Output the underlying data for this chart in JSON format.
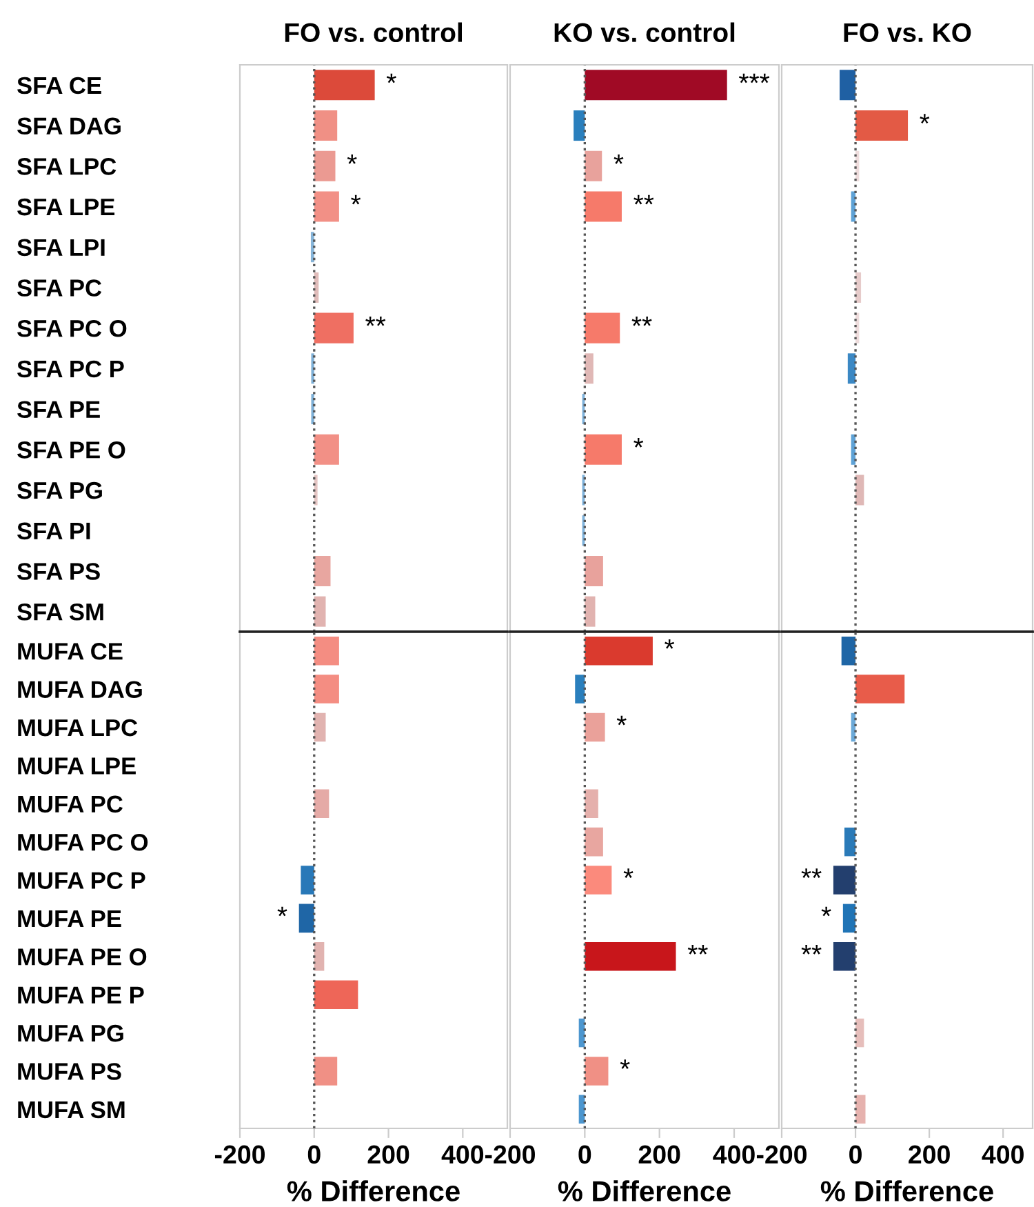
{
  "chart_data": [
    {
      "type": "bar",
      "orientation": "horizontal",
      "title": "FO vs. control",
      "tick_labels": "y",
      "categories": [
        "SFA CE",
        "SFA DAG",
        "SFA LPC",
        "SFA LPE",
        "SFA LPI",
        "SFA PC",
        "SFA PC O",
        "SFA PC P",
        "SFA PE",
        "SFA PE O",
        "SFA PG",
        "SFA PI",
        "SFA PS",
        "SFA SM"
      ],
      "values": [
        163,
        62,
        57,
        67,
        -9,
        12,
        106,
        -8,
        -8,
        67,
        9,
        null,
        44,
        31
      ],
      "colors": [
        "#dc4a3a",
        "#f09085",
        "#eb9a92",
        "#f29086",
        "#86b4d8",
        "#e0bcba",
        "#ef6f62",
        "#7fb0d6",
        "#7fb0d6",
        "#f29086",
        "#e5c6c4",
        "#a9c9e3",
        "#e8a6a0",
        "#e1b3b0"
      ],
      "xlim": [
        -200,
        520
      ],
      "xticks": [
        -200,
        0,
        200,
        400
      ],
      "ref_lines": [
        {
          "axis": "x",
          "value": 0,
          "line_style": "dotted",
          "color": "#555555"
        }
      ],
      "annotations": [
        {
          "text": "*",
          "x": 163,
          "y": "SFA CE"
        },
        {
          "text": "*",
          "x": 57,
          "y": "SFA LPC"
        },
        {
          "text": "*",
          "x": 67,
          "y": "SFA LPE"
        },
        {
          "text": "**",
          "x": 106,
          "y": "SFA PC O"
        }
      ]
    },
    {
      "type": "bar",
      "orientation": "horizontal",
      "title": "KO vs. control",
      "tick_labels": false,
      "categories": [
        "SFA CE",
        "SFA DAG",
        "SFA LPC",
        "SFA LPE",
        "SFA LPI",
        "SFA PC",
        "SFA PC O",
        "SFA PC P",
        "SFA PE",
        "SFA PE O",
        "SFA PG",
        "SFA PI",
        "SFA PS",
        "SFA SM"
      ],
      "values": [
        381,
        -30,
        46,
        99,
        0,
        0,
        94,
        23,
        -7,
        99,
        -7,
        -7,
        49,
        28
      ],
      "colors": [
        "#a00a25",
        "#2a7fbd",
        "#e8a29c",
        "#f67a6a",
        "#dddddd",
        "#dddddd",
        "#f67a6a",
        "#e0b8b6",
        "#7fb3dc",
        "#f67a6a",
        "#7fb3dc",
        "#7fb3dc",
        "#e8a29c",
        "#e1b3b0"
      ],
      "xlim": [
        -200,
        520
      ],
      "xticks": [
        -200,
        0,
        200,
        400
      ],
      "ref_lines": [
        {
          "axis": "x",
          "value": 0,
          "line_style": "dotted",
          "color": "#555555"
        }
      ],
      "annotations": [
        {
          "text": "***",
          "x": 381,
          "y": "SFA CE"
        },
        {
          "text": "*",
          "x": 46,
          "y": "SFA LPC"
        },
        {
          "text": "**",
          "x": 99,
          "y": "SFA LPE"
        },
        {
          "text": "**",
          "x": 94,
          "y": "SFA PC O"
        },
        {
          "text": "*",
          "x": 99,
          "y": "SFA PE O"
        }
      ]
    },
    {
      "type": "bar",
      "orientation": "horizontal",
      "title": "FO vs. KO",
      "tick_labels": false,
      "categories": [
        "SFA CE",
        "SFA DAG",
        "SFA LPC",
        "SFA LPE",
        "SFA LPI",
        "SFA PC",
        "SFA PC O",
        "SFA PC P",
        "SFA PE",
        "SFA PE O",
        "SFA PG",
        "SFA PI",
        "SFA PS",
        "SFA SM"
      ],
      "values": [
        -43,
        142,
        10,
        -12,
        0,
        15,
        10,
        -21,
        0,
        -12,
        23,
        0,
        0,
        0
      ],
      "colors": [
        "#1f60a3",
        "#e35a45",
        "#eedcdc",
        "#5ea2d6",
        "#dddddd",
        "#e6cbca",
        "#eedcdc",
        "#3b88c4",
        "#dddddd",
        "#5ea2d6",
        "#dfb8b6",
        "#dddddd",
        "#dddddd",
        "#dddddd"
      ],
      "xlim": [
        -200,
        480
      ],
      "xticks": [
        -200,
        0,
        200,
        400
      ],
      "ref_lines": [
        {
          "axis": "x",
          "value": 0,
          "line_style": "dotted",
          "color": "#555555"
        }
      ],
      "annotations": [
        {
          "text": "*",
          "x": 142,
          "y": "SFA DAG"
        }
      ]
    },
    {
      "type": "bar",
      "orientation": "horizontal",
      "xlabel": "% Difference",
      "categories": [
        "MUFA CE",
        "MUFA DAG",
        "MUFA LPC",
        "MUFA LPE",
        "MUFA PC",
        "MUFA PC O",
        "MUFA PC P",
        "MUFA PE",
        "MUFA PE O",
        "MUFA PE P",
        "MUFA PG",
        "MUFA PS",
        "MUFA SM"
      ],
      "values": [
        67,
        67,
        31,
        0,
        40,
        0,
        -36,
        -41,
        27,
        118,
        0,
        62,
        0
      ],
      "colors": [
        "#f48d82",
        "#f48d82",
        "#e1b3b0",
        "#dddddd",
        "#e5aaa6",
        "#dddddd",
        "#2878b8",
        "#1f66a6",
        "#e1b3b0",
        "#ee6658",
        "#dddddd",
        "#f09085",
        "#dddddd"
      ],
      "xlim": [
        -200,
        520
      ],
      "xticks": [
        -200,
        0,
        200,
        400
      ],
      "ref_lines": [
        {
          "axis": "x",
          "value": 0,
          "line_style": "dotted",
          "color": "#555555"
        }
      ],
      "annotations": [
        {
          "text": "*",
          "x": -41,
          "y": "MUFA PE"
        }
      ]
    },
    {
      "type": "bar",
      "orientation": "horizontal",
      "xlabel": "% Difference",
      "tick_labels": "x",
      "categories": [
        "MUFA CE",
        "MUFA DAG",
        "MUFA LPC",
        "MUFA LPE",
        "MUFA PC",
        "MUFA PC O",
        "MUFA PC P",
        "MUFA PE",
        "MUFA PE O",
        "MUFA PE P",
        "MUFA PG",
        "MUFA PS",
        "MUFA SM"
      ],
      "values": [
        182,
        -26,
        54,
        0,
        36,
        49,
        72,
        null,
        244,
        0,
        -16,
        63,
        -16
      ],
      "colors": [
        "#da3a2e",
        "#2a7fbd",
        "#eaa19a",
        "#dddddd",
        "#e5b0ac",
        "#e8a6a0",
        "#fb8a7c",
        "#e8d0cf",
        "#c8161b",
        "#dddddd",
        "#4c96cf",
        "#f09085",
        "#4c96cf"
      ],
      "xlim": [
        -200,
        520
      ],
      "xticks": [
        -200,
        0,
        200,
        400
      ],
      "ref_lines": [
        {
          "axis": "x",
          "value": 0,
          "line_style": "dotted",
          "color": "#555555"
        }
      ],
      "annotations": [
        {
          "text": "*",
          "x": 182,
          "y": "MUFA CE"
        },
        {
          "text": "*",
          "x": 54,
          "y": "MUFA LPC"
        },
        {
          "text": "*",
          "x": 72,
          "y": "MUFA PC P"
        },
        {
          "text": "**",
          "x": 244,
          "y": "MUFA PE O"
        },
        {
          "text": "*",
          "x": 63,
          "y": "MUFA PS"
        }
      ]
    },
    {
      "type": "bar",
      "orientation": "horizontal",
      "xlabel": "% Difference",
      "tick_labels": "x",
      "categories": [
        "MUFA CE",
        "MUFA DAG",
        "MUFA LPC",
        "MUFA LPE",
        "MUFA PC",
        "MUFA PC O",
        "MUFA PC P",
        "MUFA PE",
        "MUFA PE O",
        "MUFA PE P",
        "MUFA PG",
        "MUFA PS",
        "MUFA SM"
      ],
      "values": [
        -38,
        133,
        -12,
        0,
        0,
        -30,
        -60,
        -34,
        -60,
        0,
        23,
        0,
        27
      ],
      "colors": [
        "#1f66a6",
        "#e85c4a",
        "#6ba9d8",
        "#dddddd",
        "#dddddd",
        "#2a7ab8",
        "#233f6e",
        "#2074b6",
        "#233f6e",
        "#dddddd",
        "#e6bebb",
        "#dddddd",
        "#e6b2ae"
      ],
      "xlim": [
        -200,
        480
      ],
      "xticks": [
        -200,
        0,
        200,
        400
      ],
      "ref_lines": [
        {
          "axis": "x",
          "value": 0,
          "line_style": "dotted",
          "color": "#555555"
        }
      ],
      "annotations": [
        {
          "text": "**",
          "x": -60,
          "y": "MUFA PC P"
        },
        {
          "text": "*",
          "x": -34,
          "y": "MUFA PE"
        },
        {
          "text": "**",
          "x": -60,
          "y": "MUFA PE O"
        }
      ]
    }
  ]
}
